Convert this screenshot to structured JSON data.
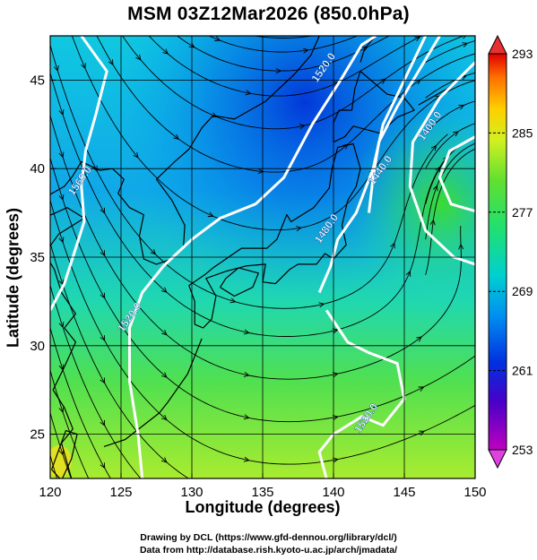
{
  "title": "MSM 03Z12Mar2026 (850.0hPa)",
  "x_axis": {
    "label": "Longitude (degrees)",
    "range": [
      120,
      150
    ],
    "ticks": [
      "120",
      "125",
      "130",
      "135",
      "140",
      "145",
      "150"
    ]
  },
  "y_axis": {
    "label": "Latitude  (degrees)",
    "range": [
      22.5,
      47.5
    ],
    "ticks": [
      "25",
      "30",
      "35",
      "40",
      "45"
    ]
  },
  "colorbar": {
    "range": [
      253,
      293
    ],
    "tick_labels": [
      "293",
      "285",
      "277",
      "269",
      "261",
      "253"
    ]
  },
  "contour_labels": [
    {
      "text": "1520.0",
      "lon": 139.5,
      "lat": 45.6
    },
    {
      "text": "1400.0",
      "lon": 147.0,
      "lat": 42.3
    },
    {
      "text": "1440.0",
      "lon": 143.5,
      "lat": 39.8
    },
    {
      "text": "1480.0",
      "lon": 139.7,
      "lat": 36.5
    },
    {
      "text": "1560.0",
      "lon": 122.3,
      "lat": 39.2
    },
    {
      "text": "1520.0",
      "lon": 125.8,
      "lat": 31.5
    },
    {
      "text": "1520.0",
      "lon": 142.5,
      "lat": 25.8
    }
  ],
  "credits": {
    "line1": "Drawing by DCL (https://www.gfd-dennou.org/library/dcl/)",
    "line2": "Data from http://database.rish.kyoto-u.ac.jp/arch/jmadata/"
  },
  "colors": {
    "contour": "#ffffff",
    "streamline": "#000000",
    "coastline": "#000000",
    "grid": "#000000"
  }
}
